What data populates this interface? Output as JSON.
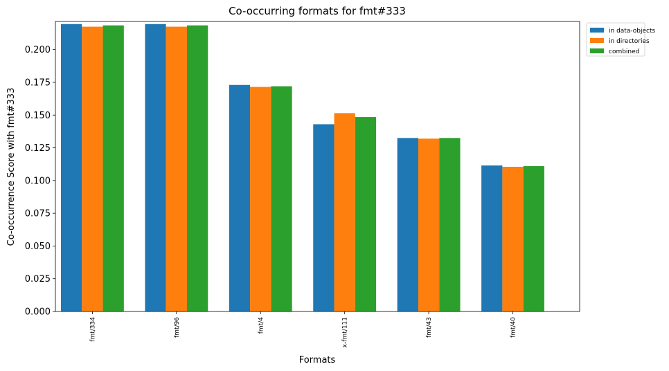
{
  "chart_data": {
    "type": "bar",
    "title": "Co-occurring formats for fmt#333",
    "xlabel": "Formats",
    "ylabel": "Co-occurrence Score with fmt#333",
    "categories": [
      "fmt/334",
      "fmt/96",
      "fmt/4",
      "x-fmt/111",
      "fmt/43",
      "fmt/40"
    ],
    "series": [
      {
        "name": "in data-objects",
        "color": "#1f77b4",
        "values": [
          0.2195,
          0.2195,
          0.173,
          0.143,
          0.1325,
          0.1115
        ]
      },
      {
        "name": "in directories",
        "color": "#ff7f0e",
        "values": [
          0.2175,
          0.2175,
          0.1715,
          0.1515,
          0.132,
          0.1105
        ]
      },
      {
        "name": "combined",
        "color": "#2ca02c",
        "values": [
          0.2185,
          0.2185,
          0.172,
          0.1485,
          0.1325,
          0.111
        ]
      }
    ],
    "ylim": [
      0,
      0.2215
    ],
    "yticks": [
      "0.000",
      "0.025",
      "0.050",
      "0.075",
      "0.100",
      "0.125",
      "0.150",
      "0.175",
      "0.200"
    ],
    "grid": false,
    "legend_position": "outside-top-right"
  }
}
